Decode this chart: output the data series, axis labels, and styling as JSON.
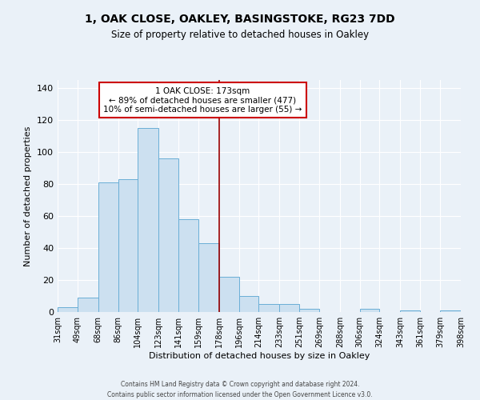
{
  "title": "1, OAK CLOSE, OAKLEY, BASINGSTOKE, RG23 7DD",
  "subtitle": "Size of property relative to detached houses in Oakley",
  "xlabel": "Distribution of detached houses by size in Oakley",
  "ylabel": "Number of detached properties",
  "bin_edges": [
    31,
    49,
    68,
    86,
    104,
    123,
    141,
    159,
    178,
    196,
    214,
    233,
    251,
    269,
    288,
    306,
    324,
    343,
    361,
    379,
    398
  ],
  "bar_heights": [
    3,
    9,
    81,
    83,
    115,
    96,
    58,
    43,
    22,
    10,
    5,
    5,
    2,
    0,
    0,
    2,
    0,
    1,
    0,
    1
  ],
  "bar_color": "#cce0f0",
  "bar_edgecolor": "#6aaed6",
  "background_color": "#eaf1f8",
  "grid_color": "#ffffff",
  "vline_x": 178,
  "vline_color": "#990000",
  "annotation_box_text": "1 OAK CLOSE: 173sqm\n← 89% of detached houses are smaller (477)\n10% of semi-detached houses are larger (55) →",
  "annotation_box_edgecolor": "#cc0000",
  "annotation_box_facecolor": "#ffffff",
  "ylim": [
    0,
    145
  ],
  "yticks": [
    0,
    20,
    40,
    60,
    80,
    100,
    120,
    140
  ],
  "tick_labels": [
    "31sqm",
    "49sqm",
    "68sqm",
    "86sqm",
    "104sqm",
    "123sqm",
    "141sqm",
    "159sqm",
    "178sqm",
    "196sqm",
    "214sqm",
    "233sqm",
    "251sqm",
    "269sqm",
    "288sqm",
    "306sqm",
    "324sqm",
    "343sqm",
    "361sqm",
    "379sqm",
    "398sqm"
  ],
  "footer_line1": "Contains HM Land Registry data © Crown copyright and database right 2024.",
  "footer_line2": "Contains public sector information licensed under the Open Government Licence v3.0."
}
